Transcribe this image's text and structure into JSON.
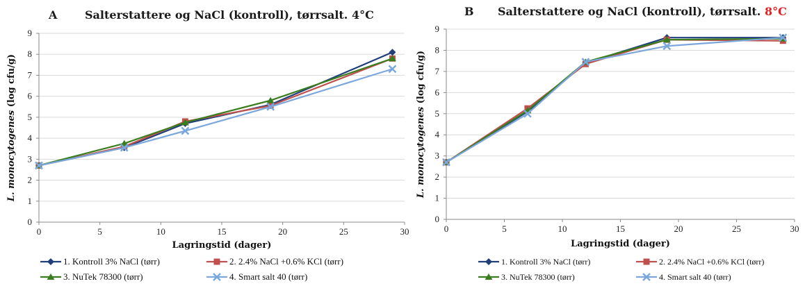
{
  "chart_data": [
    {
      "type": "line",
      "panel_letter": "A",
      "title": "Salterstattere og NaCl (kontroll), tørrsalt.",
      "title_temp": "4°C",
      "title_temp_color": "#1a1a1a",
      "xlabel": "Lagringstid (dager)",
      "ylabel_italic": "L. monocytogenes",
      "ylabel_rest": " (log cfu/g)",
      "xlim": [
        0,
        30
      ],
      "ylim": [
        0,
        9
      ],
      "xticks": [
        "0",
        "5",
        "10",
        "15",
        "20",
        "25",
        "30"
      ],
      "yticks": [
        "0",
        "1",
        "2",
        "3",
        "4",
        "5",
        "6",
        "7",
        "8",
        "9"
      ],
      "grid": true,
      "legend_position": "bottom",
      "series": [
        {
          "name": "1. Kontroll 3% NaCl (tørr)",
          "color": "#1f3e7a",
          "marker": "diamond",
          "x": [
            0,
            7,
            12,
            19,
            29
          ],
          "y": [
            2.7,
            3.55,
            4.7,
            5.6,
            8.1
          ]
        },
        {
          "name": "2. 2.4% NaCl +0.6% KCl (tørr)",
          "color": "#c0504d",
          "marker": "square",
          "x": [
            0,
            7,
            12,
            19,
            29
          ],
          "y": [
            2.7,
            3.6,
            4.8,
            5.55,
            7.8
          ]
        },
        {
          "name": "3. NuTek 78300 (tørr)",
          "color": "#3a7d1e",
          "marker": "triangle",
          "x": [
            0,
            7,
            12,
            19,
            29
          ],
          "y": [
            2.7,
            3.75,
            4.75,
            5.8,
            7.8
          ]
        },
        {
          "name": "4. Smart salt 40 (tørr)",
          "color": "#7ba7dc",
          "marker": "x",
          "x": [
            0,
            7,
            12,
            19,
            29
          ],
          "y": [
            2.7,
            3.55,
            4.35,
            5.5,
            7.3
          ]
        }
      ]
    },
    {
      "type": "line",
      "panel_letter": "B",
      "title": "Salterstattere og NaCl (kontroll), tørrsalt.",
      "title_temp": "8°C",
      "title_temp_color": "#e02020",
      "xlabel": "Lagringstid (dager)",
      "ylabel_italic": "L. monocytogenes",
      "ylabel_rest": " (log cfu/g)",
      "xlim": [
        0,
        30
      ],
      "ylim": [
        0,
        9
      ],
      "xticks": [
        "0",
        "5",
        "10",
        "15",
        "20",
        "25",
        "30"
      ],
      "yticks": [
        "0",
        "1",
        "2",
        "3",
        "4",
        "5",
        "6",
        "7",
        "8",
        "9"
      ],
      "grid": true,
      "legend_position": "bottom",
      "series": [
        {
          "name": "1. Kontroll 3% NaCl (tørr)",
          "color": "#1f3e7a",
          "marker": "diamond",
          "x": [
            0,
            7,
            12,
            19,
            29
          ],
          "y": [
            2.7,
            5.1,
            7.4,
            8.6,
            8.6
          ]
        },
        {
          "name": "2. 2.4% NaCl +0.6% KCl (tørr)",
          "color": "#c0504d",
          "marker": "square",
          "x": [
            0,
            7,
            12,
            19,
            29
          ],
          "y": [
            2.7,
            5.25,
            7.35,
            8.5,
            8.45
          ]
        },
        {
          "name": "3. NuTek 78300 (tørr)",
          "color": "#3a7d1e",
          "marker": "triangle",
          "x": [
            0,
            7,
            12,
            19,
            29
          ],
          "y": [
            2.7,
            5.15,
            7.45,
            8.5,
            8.55
          ]
        },
        {
          "name": "4. Smart salt 40 (tørr)",
          "color": "#7ba7dc",
          "marker": "x",
          "x": [
            0,
            7,
            12,
            19,
            29
          ],
          "y": [
            2.7,
            5.0,
            7.45,
            8.2,
            8.6
          ]
        }
      ]
    }
  ]
}
